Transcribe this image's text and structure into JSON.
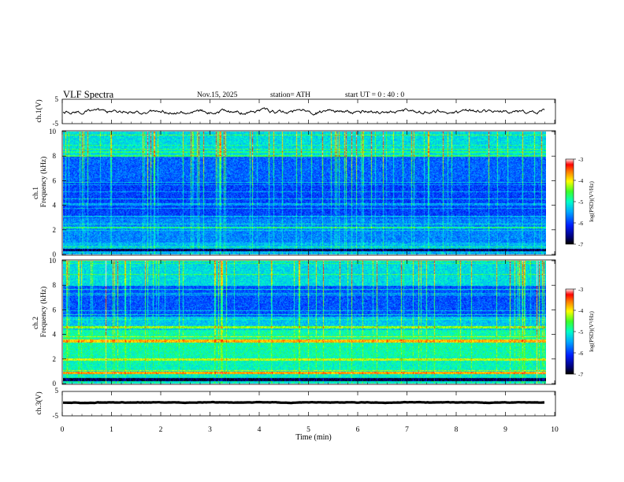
{
  "header": {
    "title": "VLF  Spectra",
    "date": "Nov.15, 2025",
    "station": "station= ATH",
    "start": "start  UT  =    0 : 40 : 0"
  },
  "chart_data": [
    {
      "type": "line",
      "name": "ch1-waveform",
      "ylabel": "ch.1(V)",
      "ylim": [
        -5,
        5
      ],
      "y_ticks": [
        "5",
        "-5"
      ],
      "xlim": [
        0,
        10
      ],
      "trace_color": "#000000"
    },
    {
      "type": "heatmap",
      "name": "ch1-spectrogram",
      "ylabel_top": "ch.1",
      "ylabel": "Frequency  (kHz)",
      "ylim": [
        0,
        10
      ],
      "y_ticks": [
        "0",
        "2",
        "4",
        "6",
        "8",
        "10"
      ],
      "xlim": [
        0,
        9.83
      ],
      "colorbar": {
        "label": "log(PSD)(V²/Hz)",
        "range": [
          -7,
          -3
        ],
        "ticks": [
          "-3",
          "-4",
          "-5",
          "-6",
          "-7"
        ]
      }
    },
    {
      "type": "heatmap",
      "name": "ch2-spectrogram",
      "ylabel_top": "ch.2",
      "ylabel": "Frequency  (kHz)",
      "ylim": [
        0,
        10
      ],
      "y_ticks": [
        "0",
        "2",
        "4",
        "6",
        "8",
        "10"
      ],
      "xlim": [
        0,
        9.83
      ],
      "colorbar": {
        "label": "log(PSD)(V²/Hz)",
        "range": [
          -7,
          -3
        ],
        "ticks": [
          "-3",
          "-4",
          "-5",
          "-6",
          "-7"
        ]
      }
    },
    {
      "type": "line",
      "name": "ch3-waveform",
      "ylabel": "ch.3(V)",
      "ylim": [
        -5,
        5
      ],
      "y_ticks": [
        "5",
        "-5"
      ],
      "xlim": [
        0,
        10
      ],
      "trace_color": "#000000"
    }
  ],
  "x_axis": {
    "label": "Time  (min)",
    "range": [
      0,
      10
    ],
    "ticks": [
      "0",
      "1",
      "2",
      "3",
      "4",
      "5",
      "6",
      "7",
      "8",
      "9",
      "10"
    ]
  }
}
